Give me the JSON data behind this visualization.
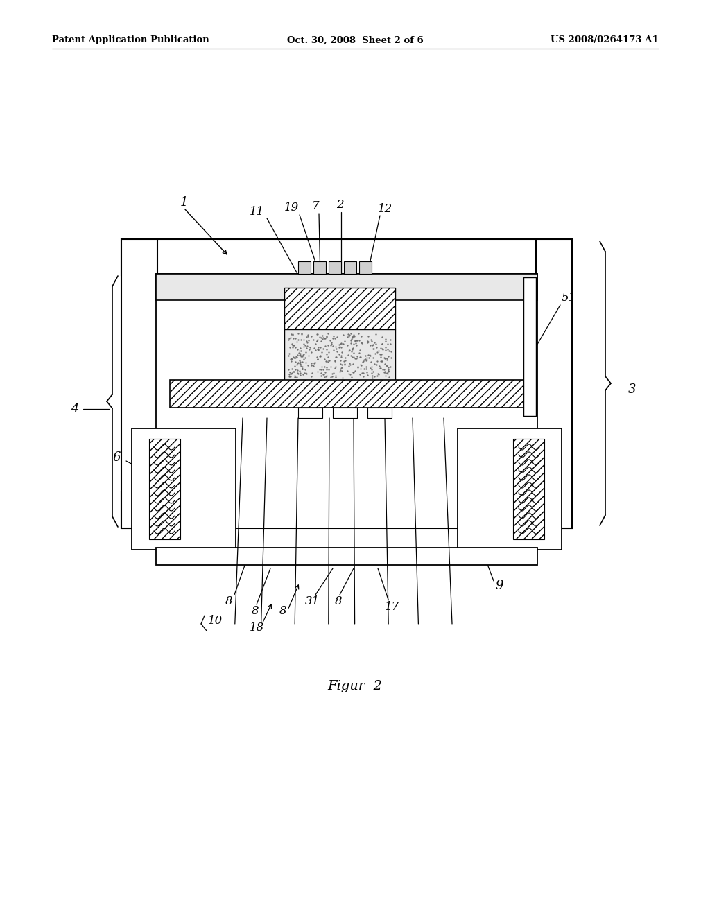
{
  "bg_color": "#ffffff",
  "header_left": "Patent Application Publication",
  "header_mid": "Oct. 30, 2008  Sheet 2 of 6",
  "header_right": "US 2008/0264173 A1",
  "figure_label": "Figur  2"
}
